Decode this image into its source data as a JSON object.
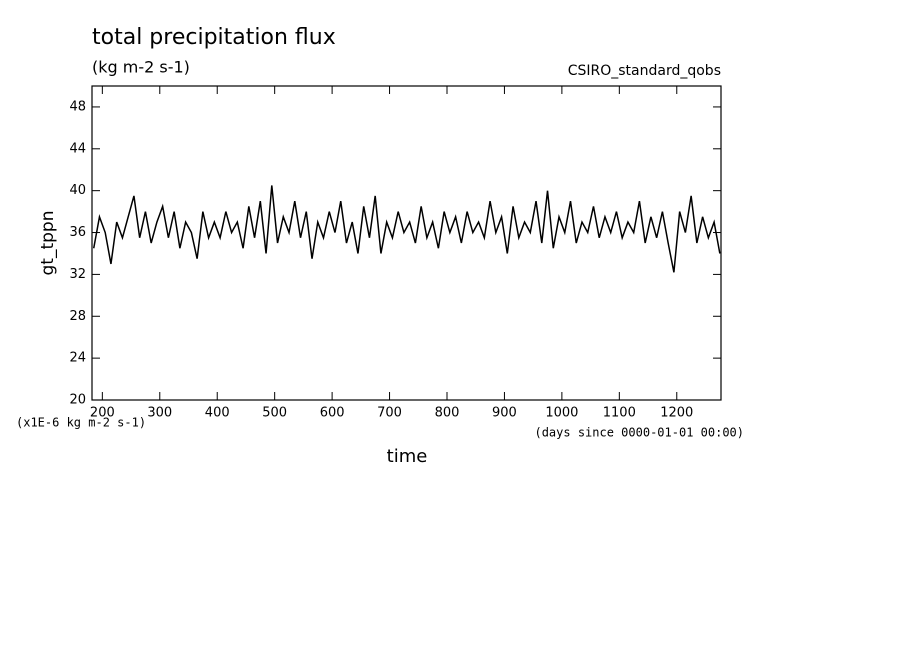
{
  "chart_data": {
    "type": "line",
    "title": "total precipitation flux",
    "subtitle": "(kg m-2 s-1)",
    "source": "CSIRO_standard_qobs",
    "y_label": "gt_tppn",
    "x_label": "time",
    "y_units": "(x1E-6 kg m-2 s-1)",
    "x_units": "(days since 0000-01-01 00:00)",
    "xlim": [
      182,
      1277
    ],
    "ylim": [
      20,
      50
    ],
    "xticks": [
      200,
      300,
      400,
      500,
      600,
      700,
      800,
      900,
      1000,
      1100,
      1200
    ],
    "yticks": [
      20,
      24,
      28,
      32,
      36,
      40,
      44,
      48
    ],
    "grid": false,
    "x": [
      185,
      195,
      205,
      215,
      225,
      235,
      245,
      255,
      265,
      275,
      285,
      295,
      305,
      315,
      325,
      335,
      345,
      355,
      365,
      375,
      385,
      395,
      405,
      415,
      425,
      435,
      445,
      455,
      465,
      475,
      485,
      495,
      505,
      515,
      525,
      535,
      545,
      555,
      565,
      575,
      585,
      595,
      605,
      615,
      625,
      635,
      645,
      655,
      665,
      675,
      685,
      695,
      705,
      715,
      725,
      735,
      745,
      755,
      765,
      775,
      785,
      795,
      805,
      815,
      825,
      835,
      845,
      855,
      865,
      875,
      885,
      895,
      905,
      915,
      925,
      935,
      945,
      955,
      965,
      975,
      985,
      995,
      1005,
      1015,
      1025,
      1035,
      1045,
      1055,
      1065,
      1075,
      1085,
      1095,
      1105,
      1115,
      1125,
      1135,
      1145,
      1155,
      1165,
      1175,
      1185,
      1195,
      1205,
      1215,
      1225,
      1235,
      1245,
      1255,
      1265,
      1275
    ],
    "series": [
      {
        "name": "gt_tppn",
        "color": "#000000",
        "values": [
          34.5,
          37.5,
          36,
          33,
          37,
          35.5,
          37.5,
          39.5,
          35.5,
          38,
          35,
          37,
          38.5,
          35.5,
          38,
          34.5,
          37,
          36,
          33.5,
          38,
          35.5,
          37,
          35.5,
          38,
          36,
          37,
          34.5,
          38.5,
          35.5,
          39,
          34,
          40.5,
          35,
          37.5,
          36,
          39,
          35.5,
          38,
          33.5,
          37,
          35.5,
          38,
          36,
          39,
          35,
          37,
          34,
          38.5,
          35.5,
          39.5,
          34,
          37,
          35.5,
          38,
          36,
          37,
          35,
          38.5,
          35.5,
          37,
          34.5,
          38,
          36,
          37.5,
          35,
          38,
          36,
          37,
          35.5,
          39,
          36,
          37.5,
          34,
          38.5,
          35.5,
          37,
          36,
          39,
          35,
          40,
          34.5,
          37.5,
          36,
          39,
          35,
          37,
          36,
          38.5,
          35.5,
          37.5,
          36,
          38,
          35.5,
          37,
          36,
          39,
          35,
          37.5,
          35.5,
          38,
          35,
          32.2,
          38,
          36,
          39.5,
          35,
          37.5,
          35.5,
          37,
          34
        ]
      }
    ]
  }
}
